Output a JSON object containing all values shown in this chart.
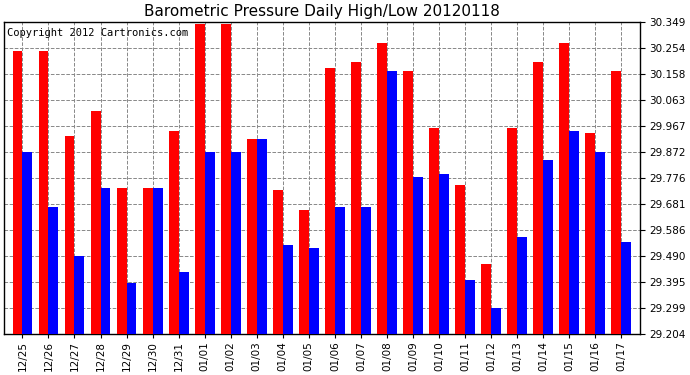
{
  "title": "Barometric Pressure Daily High/Low 20120118",
  "copyright": "Copyright 2012 Cartronics.com",
  "categories": [
    "12/25",
    "12/26",
    "12/27",
    "12/28",
    "12/29",
    "12/30",
    "12/31",
    "01/01",
    "01/02",
    "01/03",
    "01/04",
    "01/05",
    "01/06",
    "01/07",
    "01/08",
    "01/09",
    "01/10",
    "01/11",
    "01/12",
    "01/13",
    "01/14",
    "01/15",
    "01/16",
    "01/17"
  ],
  "highs": [
    30.24,
    30.24,
    29.93,
    30.02,
    29.74,
    29.74,
    29.95,
    30.34,
    30.34,
    29.92,
    29.73,
    29.66,
    30.18,
    30.2,
    30.27,
    30.17,
    29.96,
    29.75,
    29.46,
    29.96,
    30.2,
    30.27,
    29.94,
    30.17
  ],
  "lows": [
    29.87,
    29.67,
    29.49,
    29.74,
    29.39,
    29.74,
    29.43,
    29.87,
    29.87,
    29.92,
    29.53,
    29.52,
    29.67,
    29.67,
    30.17,
    29.78,
    29.79,
    29.4,
    29.3,
    29.56,
    29.84,
    29.95,
    29.87,
    29.54
  ],
  "high_color": "#ff0000",
  "low_color": "#0000ff",
  "bg_color": "#ffffff",
  "plot_bg_color": "#ffffff",
  "grid_color": "#888888",
  "ymin": 29.204,
  "ymax": 30.349,
  "yticks": [
    29.204,
    29.299,
    29.395,
    29.49,
    29.586,
    29.681,
    29.776,
    29.872,
    29.967,
    30.063,
    30.158,
    30.254,
    30.349
  ],
  "title_fontsize": 11,
  "tick_fontsize": 7.5,
  "copyright_fontsize": 7.5
}
